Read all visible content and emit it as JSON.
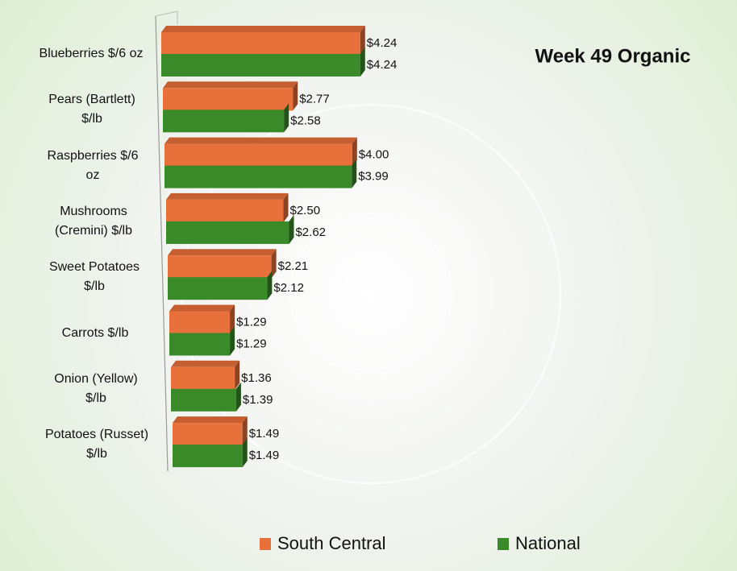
{
  "chart_data": {
    "type": "bar3d_horizontal",
    "title": "Week 49 Organic",
    "categories": [
      "Blueberries $/6 oz",
      "Pears (Bartlett) $/lb",
      "Raspberries $/6 oz",
      "Mushrooms (Cremini) $/lb",
      "Sweet Potatoes $/lb",
      "Carrots $/lb",
      "Onion (Yellow) $/lb",
      "Potatoes (Russet) $/lb"
    ],
    "series": [
      {
        "name": "South Central",
        "color": "#e8703a",
        "values": [
          4.24,
          2.77,
          4.0,
          2.5,
          2.21,
          1.29,
          1.36,
          1.49
        ],
        "value_labels": [
          "$4.24",
          "$2.77",
          "$4.00",
          "$2.50",
          "$2.21",
          "$1.29",
          "$1.36",
          "$1.49"
        ]
      },
      {
        "name": "National",
        "color": "#3a8a2a",
        "values": [
          4.24,
          2.58,
          3.99,
          2.62,
          2.12,
          1.29,
          1.39,
          1.49
        ],
        "value_labels": [
          "$4.24",
          "$2.58",
          "$3.99",
          "$2.62",
          "$2.12",
          "$1.29",
          "$1.39",
          "$1.49"
        ]
      }
    ],
    "xlim": [
      0,
      5
    ],
    "legend": "bottom"
  }
}
